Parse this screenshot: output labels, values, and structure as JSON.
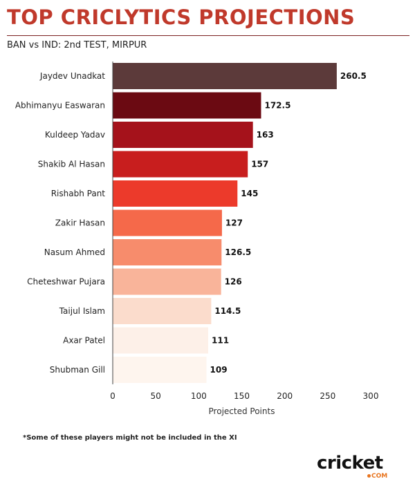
{
  "header": {
    "title": "TOP CRICLYTICS PROJECTIONS",
    "subtitle": "BAN vs IND: 2nd TEST, MIRPUR"
  },
  "footnote": "*Some of these players might not be included in the XI",
  "logo": {
    "wordmark": "cricket",
    "suffix": "COM",
    "accent_color": "#e8741e"
  },
  "chart_data": {
    "type": "bar",
    "orientation": "horizontal",
    "categories": [
      "Jaydev Unadkat",
      "Abhimanyu Easwaran",
      "Kuldeep Yadav",
      "Shakib Al Hasan",
      "Rishabh Pant",
      "Zakir Hasan",
      "Nasum Ahmed",
      "Cheteshwar Pujara",
      "Taijul Islam",
      "Axar Patel",
      "Shubman Gill"
    ],
    "values": [
      260.5,
      172.5,
      163,
      157,
      145,
      127,
      126.5,
      126,
      114.5,
      111,
      109
    ],
    "value_labels": [
      "260.5",
      "172.5",
      "163",
      "157",
      "145",
      "127",
      "126.5",
      "126",
      "114.5",
      "111",
      "109"
    ],
    "colors": [
      "#5c3a3a",
      "#6b0a12",
      "#a5121b",
      "#c81e1e",
      "#ec3a2b",
      "#f5694a",
      "#f78c6c",
      "#f9b49a",
      "#fbdccc",
      "#fdf0e8",
      "#fef5ee"
    ],
    "x_ticks": [
      0,
      50,
      100,
      150,
      200,
      250,
      300
    ],
    "xlim": [
      0,
      300
    ],
    "xlabel": "Projected Points",
    "ylabel": "",
    "grid": false
  }
}
